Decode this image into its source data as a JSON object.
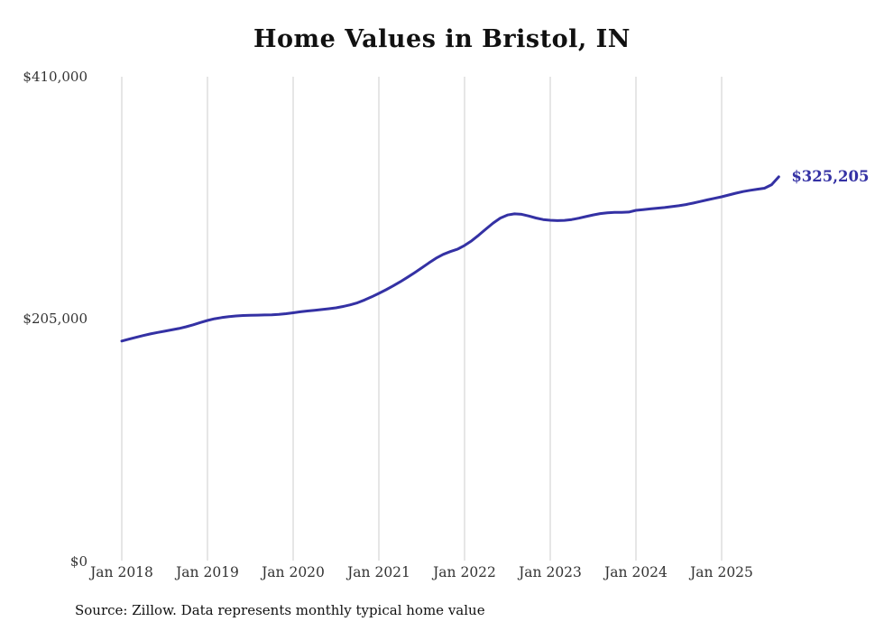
{
  "chart_data": {
    "type": "line",
    "title": "Home Values in Bristol, IN",
    "source_note": "Source: Zillow. Data represents monthly typical home value",
    "series_name": "Monthly typical home value",
    "end_label": "$325,205",
    "latest_value": 325205,
    "line_color": "#3431a4",
    "grid_color": "#cccccc",
    "grid": "vertical gridlines at each January, no horizontal gridlines",
    "legend": "none",
    "ylim": [
      0,
      410000
    ],
    "y_tick_labels": [
      "$410,000",
      "$205,000",
      "$0"
    ],
    "y_tick_values": [
      410000,
      205000,
      0
    ],
    "x_tick_labels": [
      "Jan 2018",
      "Jan 2019",
      "Jan 2020",
      "Jan 2021",
      "Jan 2022",
      "Jan 2023",
      "Jan 2024",
      "Jan 2025"
    ],
    "x": [
      "2018-01",
      "2018-02",
      "2018-03",
      "2018-04",
      "2018-05",
      "2018-06",
      "2018-07",
      "2018-08",
      "2018-09",
      "2018-10",
      "2018-11",
      "2018-12",
      "2019-01",
      "2019-02",
      "2019-03",
      "2019-04",
      "2019-05",
      "2019-06",
      "2019-07",
      "2019-08",
      "2019-09",
      "2019-10",
      "2019-11",
      "2019-12",
      "2020-01",
      "2020-02",
      "2020-03",
      "2020-04",
      "2020-05",
      "2020-06",
      "2020-07",
      "2020-08",
      "2020-09",
      "2020-10",
      "2020-11",
      "2020-12",
      "2021-01",
      "2021-02",
      "2021-03",
      "2021-04",
      "2021-05",
      "2021-06",
      "2021-07",
      "2021-08",
      "2021-09",
      "2021-10",
      "2021-11",
      "2021-12",
      "2022-01",
      "2022-02",
      "2022-03",
      "2022-04",
      "2022-05",
      "2022-06",
      "2022-07",
      "2022-08",
      "2022-09",
      "2022-10",
      "2022-11",
      "2022-12",
      "2023-01",
      "2023-02",
      "2023-03",
      "2023-04",
      "2023-05",
      "2023-06",
      "2023-07",
      "2023-08",
      "2023-09",
      "2023-10",
      "2023-11",
      "2023-12",
      "2024-01",
      "2024-02",
      "2024-03",
      "2024-04",
      "2024-05",
      "2024-06",
      "2024-07",
      "2024-08",
      "2024-09",
      "2024-10",
      "2024-11",
      "2024-12",
      "2025-01",
      "2025-02",
      "2025-03",
      "2025-04",
      "2025-05",
      "2025-06",
      "2025-07",
      "2025-08",
      "2025-09"
    ],
    "values": [
      186000,
      187600,
      189200,
      190700,
      192100,
      193300,
      194400,
      195500,
      196700,
      198100,
      199800,
      201700,
      203500,
      204900,
      205900,
      206700,
      207300,
      207700,
      207900,
      208000,
      208100,
      208300,
      208600,
      209200,
      210000,
      210800,
      211500,
      212100,
      212700,
      213400,
      214200,
      215300,
      216700,
      218500,
      220800,
      223500,
      226400,
      229500,
      232800,
      236300,
      240000,
      243900,
      248000,
      252200,
      256200,
      259500,
      261800,
      263800,
      267000,
      271000,
      275800,
      281000,
      286000,
      290200,
      292800,
      293800,
      293400,
      292000,
      290300,
      289000,
      288400,
      288100,
      288300,
      289000,
      290100,
      291500,
      292900,
      294000,
      294700,
      295000,
      295100,
      295300,
      296800,
      297400,
      298000,
      298600,
      299200,
      299900,
      300700,
      301700,
      302900,
      304300,
      305700,
      307000,
      308300,
      309800,
      311300,
      312700,
      313800,
      314700,
      315500,
      318500,
      325205
    ]
  }
}
